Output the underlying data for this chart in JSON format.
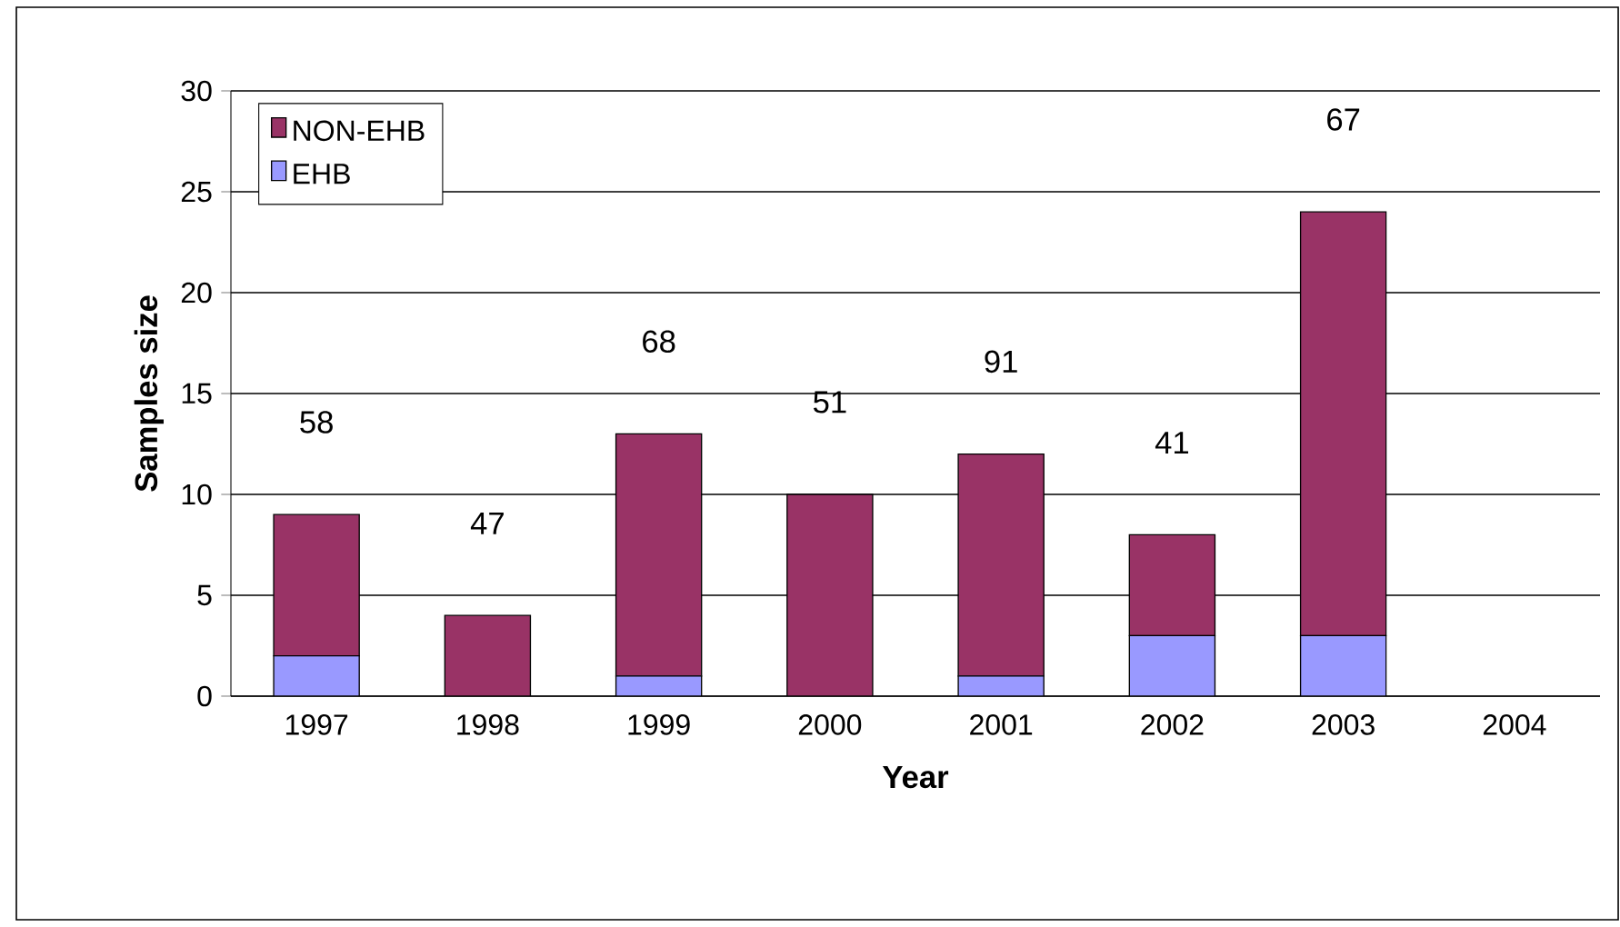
{
  "chart_data": {
    "type": "bar",
    "stacked": true,
    "xlabel": "Year",
    "ylabel": "Samples size",
    "categories": [
      "1997",
      "1998",
      "1999",
      "2000",
      "2001",
      "2002",
      "2003",
      "2004"
    ],
    "series": [
      {
        "name": "EHB",
        "color": "#9999ff",
        "values": [
          2,
          0,
          1,
          0,
          1,
          3,
          3,
          0
        ]
      },
      {
        "name": "NON-EHB",
        "color": "#993366",
        "values": [
          7,
          4,
          12,
          10,
          11,
          5,
          21,
          0
        ]
      }
    ],
    "ylim": [
      0,
      30
    ],
    "yticks": [
      0,
      5,
      10,
      15,
      20,
      25,
      30
    ],
    "grid": "y",
    "legend": "top left",
    "annotations": [
      "58",
      "47",
      "68",
      "51",
      "91",
      "41",
      "67"
    ]
  }
}
